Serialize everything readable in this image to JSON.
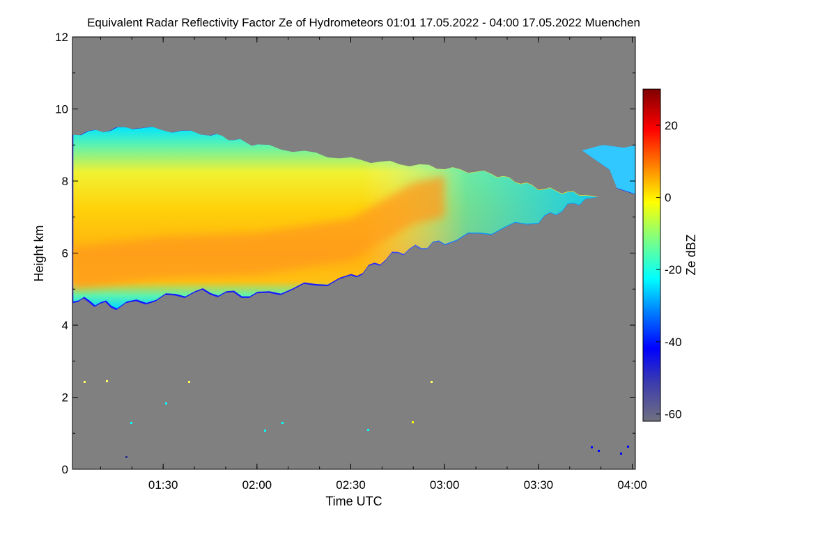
{
  "chart_data": {
    "type": "heatmap",
    "title": "Equivalent Radar Reflectivity Factor Ze of Hydrometeors   01:01 17.05.2022 - 04:00 17.05.2022 Muenchen",
    "xlabel": "Time UTC",
    "ylabel": "Height km",
    "colorbar_label": "Ze dBZ",
    "x_range": [
      "01:01",
      "04:01"
    ],
    "ylim": [
      0,
      12
    ],
    "clim": [
      -62,
      30
    ],
    "x_ticks": [
      "01:30",
      "02:00",
      "02:30",
      "03:00",
      "03:30",
      "04:00"
    ],
    "y_ticks": [
      "0",
      "2",
      "4",
      "6",
      "8",
      "10",
      "12"
    ],
    "colorbar_ticks": [
      "20",
      "0",
      "-20",
      "-40",
      "-60"
    ],
    "background_color": "#808080",
    "colormap": "jet",
    "cloud_top_km": [
      {
        "t": "01:01",
        "v": 9.3
      },
      {
        "t": "01:20",
        "v": 9.5
      },
      {
        "t": "01:45",
        "v": 9.3
      },
      {
        "t": "02:00",
        "v": 9.0
      },
      {
        "t": "02:30",
        "v": 8.6
      },
      {
        "t": "02:55",
        "v": 8.4
      },
      {
        "t": "03:15",
        "v": 8.2
      },
      {
        "t": "03:30",
        "v": 7.8
      },
      {
        "t": "03:45",
        "v": 7.6
      }
    ],
    "cloud_base_km": [
      {
        "t": "01:01",
        "v": 4.7
      },
      {
        "t": "01:15",
        "v": 4.5
      },
      {
        "t": "01:40",
        "v": 4.9
      },
      {
        "t": "02:00",
        "v": 4.8
      },
      {
        "t": "02:30",
        "v": 5.3
      },
      {
        "t": "02:45",
        "v": 6.0
      },
      {
        "t": "03:00",
        "v": 6.3
      },
      {
        "t": "03:30",
        "v": 6.9
      },
      {
        "t": "03:45",
        "v": 7.5
      }
    ],
    "max_reflectivity_core_km": [
      {
        "t": "01:01",
        "v": 5.6
      },
      {
        "t": "01:30",
        "v": 5.9
      },
      {
        "t": "02:00",
        "v": 6.0
      },
      {
        "t": "02:30",
        "v": 6.4
      },
      {
        "t": "02:50",
        "v": 7.4
      },
      {
        "t": "03:00",
        "v": 7.6
      }
    ],
    "second_cloud": {
      "start": "03:44",
      "end": "04:01",
      "top_km": 9.0,
      "base_km": 7.6
    }
  }
}
